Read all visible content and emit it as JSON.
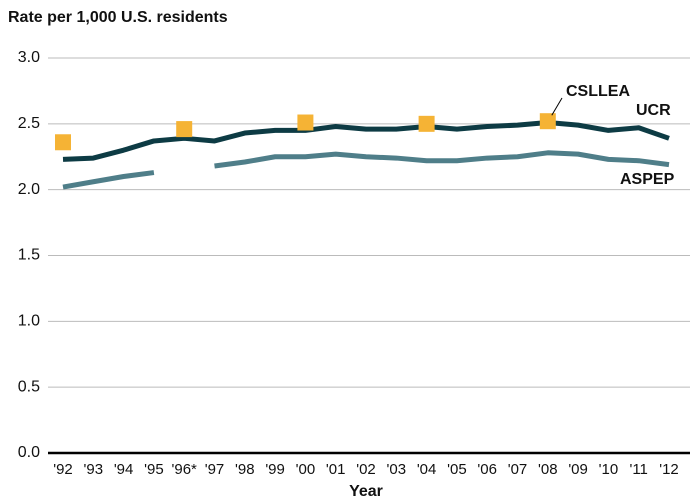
{
  "chart_data": {
    "type": "line",
    "title": "Rate per 1,000 U.S. residents",
    "x_label": "Year",
    "categories": [
      "'92",
      "'93",
      "'94",
      "'95",
      "'96*",
      "'97",
      "'98",
      "'99",
      "'00",
      "'01",
      "'02",
      "'03",
      "'04",
      "'05",
      "'06",
      "'07",
      "'08",
      "'09",
      "'10",
      "'11",
      "'12"
    ],
    "series": [
      {
        "name": "UCR",
        "color": "#0d3b44",
        "mark": "line",
        "values": [
          2.23,
          2.24,
          2.3,
          2.37,
          2.39,
          2.37,
          2.43,
          2.45,
          2.45,
          2.48,
          2.46,
          2.46,
          2.48,
          2.46,
          2.48,
          2.49,
          2.51,
          2.49,
          2.45,
          2.47,
          2.39
        ]
      },
      {
        "name": "ASPEP",
        "color": "#4f7e89",
        "mark": "line",
        "values": [
          2.02,
          2.06,
          2.1,
          2.13,
          null,
          2.18,
          2.21,
          2.25,
          2.25,
          2.27,
          2.25,
          2.24,
          2.22,
          2.22,
          2.24,
          2.25,
          2.28,
          2.27,
          2.23,
          2.22,
          2.19
        ]
      },
      {
        "name": "CSLLEA",
        "color": "#f5b335",
        "mark": "square",
        "values": [
          2.36,
          null,
          null,
          null,
          2.46,
          null,
          null,
          null,
          2.51,
          null,
          null,
          null,
          2.5,
          null,
          null,
          null,
          2.52,
          null,
          null,
          null,
          null
        ]
      }
    ],
    "ylim": [
      0,
      3
    ],
    "yticks": [
      {
        "value": 0,
        "label": "0.0"
      },
      0.5,
      {
        "value": 1,
        "label": "1.0"
      },
      1.5,
      {
        "value": 2,
        "label": "2.0"
      },
      2.5,
      {
        "value": 3,
        "label": "3.0"
      }
    ],
    "grid": true
  }
}
